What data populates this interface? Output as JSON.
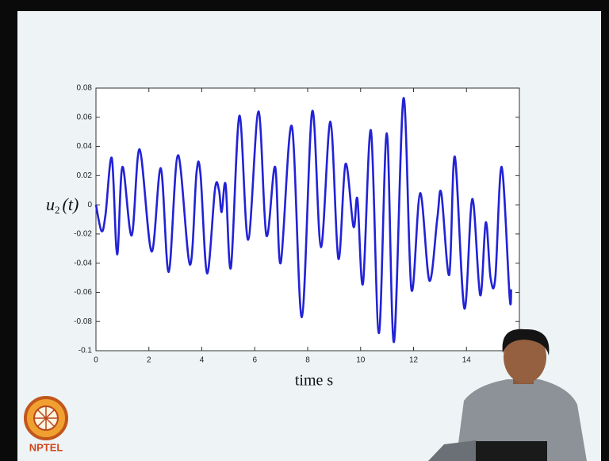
{
  "chart_data": {
    "type": "line",
    "ylabel": {
      "symbol": "u",
      "subscript": "2",
      "argument": "(t)"
    },
    "xlabel": "time s",
    "xlim": [
      0,
      16
    ],
    "xticks": [
      0,
      2,
      4,
      6,
      8,
      10,
      12,
      14
    ],
    "ylim": [
      -0.1,
      0.08
    ],
    "yticks": [
      0.08,
      0.06,
      0.04,
      0.02,
      0,
      -0.02,
      -0.04,
      -0.06,
      -0.08,
      -0.1
    ],
    "grid": false,
    "series": [
      {
        "color": "#2222d6",
        "x": [
          0,
          0.21,
          0.36,
          0.6,
          0.8,
          1.0,
          1.35,
          1.65,
          2.1,
          2.45,
          2.75,
          3.1,
          3.55,
          3.8,
          3.95,
          4.2,
          4.5,
          4.65,
          4.75,
          4.9,
          5.1,
          5.42,
          5.75,
          6.14,
          6.44,
          6.77,
          6.98,
          7.4,
          7.78,
          8.17,
          8.5,
          8.86,
          9.16,
          9.43,
          9.73,
          9.88,
          10.09,
          10.39,
          10.69,
          10.99,
          11.26,
          11.62,
          11.92,
          12.25,
          12.6,
          12.9,
          13.05,
          13.35,
          13.56,
          13.92,
          14.22,
          14.52,
          14.73,
          14.91,
          15.09,
          15.33,
          15.63,
          15.69
        ],
        "values": [
          0,
          -0.018,
          -0.007,
          0.032,
          -0.034,
          0.026,
          -0.021,
          0.038,
          -0.032,
          0.025,
          -0.046,
          0.034,
          -0.041,
          0.022,
          0.021,
          -0.047,
          0.011,
          0.01,
          -0.005,
          0.014,
          -0.043,
          0.061,
          -0.024,
          0.064,
          -0.021,
          0.026,
          -0.04,
          0.054,
          -0.077,
          0.064,
          -0.029,
          0.057,
          -0.037,
          0.028,
          -0.015,
          0.004,
          -0.054,
          0.051,
          -0.088,
          0.049,
          -0.094,
          0.073,
          -0.058,
          0.008,
          -0.052,
          -0.009,
          0.008,
          -0.048,
          0.033,
          -0.071,
          0.004,
          -0.062,
          -0.012,
          -0.05,
          -0.05,
          0.026,
          -0.063,
          -0.058
        ]
      }
    ]
  },
  "logo": {
    "text": "NPTEL"
  }
}
